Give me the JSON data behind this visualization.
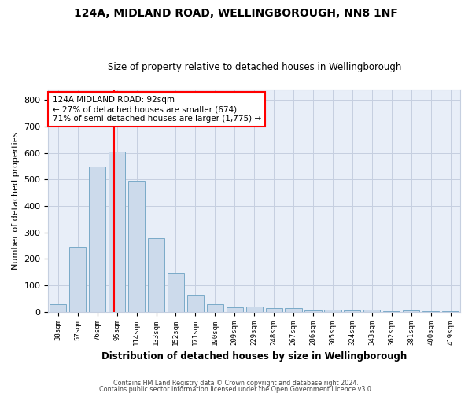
{
  "title1": "124A, MIDLAND ROAD, WELLINGBOROUGH, NN8 1NF",
  "title2": "Size of property relative to detached houses in Wellingborough",
  "xlabel": "Distribution of detached houses by size in Wellingborough",
  "ylabel": "Number of detached properties",
  "categories": [
    "38sqm",
    "57sqm",
    "76sqm",
    "95sqm",
    "114sqm",
    "133sqm",
    "152sqm",
    "171sqm",
    "190sqm",
    "209sqm",
    "229sqm",
    "248sqm",
    "267sqm",
    "286sqm",
    "305sqm",
    "324sqm",
    "343sqm",
    "362sqm",
    "381sqm",
    "400sqm",
    "419sqm"
  ],
  "values": [
    30,
    245,
    550,
    605,
    495,
    278,
    148,
    63,
    30,
    17,
    20,
    13,
    13,
    5,
    7,
    5,
    8,
    3,
    5,
    3,
    3
  ],
  "bar_color": "#ccdaeb",
  "bar_edge_color": "#7aaac8",
  "grid_color": "#c5cfe0",
  "background_color": "#e8eef8",
  "annotation_line1": "124A MIDLAND ROAD: 92sqm",
  "annotation_line2": "← 27% of detached houses are smaller (674)",
  "annotation_line3": "71% of semi-detached houses are larger (1,775) →",
  "ylim": [
    0,
    840
  ],
  "yticks": [
    0,
    100,
    200,
    300,
    400,
    500,
    600,
    700,
    800
  ],
  "red_line_index": 2.84,
  "footer1": "Contains HM Land Registry data © Crown copyright and database right 2024.",
  "footer2": "Contains public sector information licensed under the Open Government Licence v3.0."
}
